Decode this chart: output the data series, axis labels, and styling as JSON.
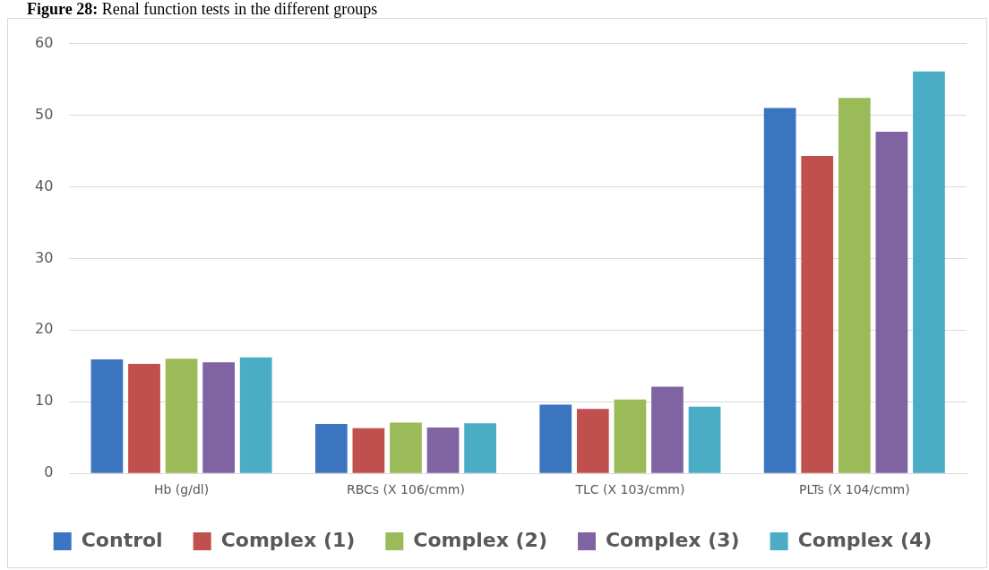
{
  "chart_data": {
    "type": "bar",
    "title": "Figure 28:  Renal function tests in the different groups",
    "categories": [
      "Hb (g/dl)",
      "RBCs (X 106/cmm)",
      "TLC (X 103/cmm)",
      "PLTs (X 104/cmm)"
    ],
    "series": [
      {
        "name": "Control",
        "color": "#3b74bf",
        "values": [
          15.9,
          6.9,
          9.6,
          51.0
        ]
      },
      {
        "name": "Complex (1)",
        "color": "#c0504d",
        "values": [
          15.3,
          6.3,
          9.0,
          44.3
        ]
      },
      {
        "name": "Complex (2)",
        "color": "#9bbb59",
        "values": [
          16.0,
          7.1,
          10.3,
          52.4
        ]
      },
      {
        "name": "Complex (3)",
        "color": "#8064a2",
        "values": [
          15.5,
          6.4,
          12.1,
          47.7
        ]
      },
      {
        "name": "Complex (4)",
        "color": "#4bacc6",
        "values": [
          16.2,
          7.0,
          9.3,
          56.1
        ]
      }
    ],
    "ylim": [
      0,
      60
    ],
    "yticks": [
      0,
      10,
      20,
      30,
      40,
      50,
      60
    ],
    "grid": "y",
    "legend": "bottom"
  }
}
